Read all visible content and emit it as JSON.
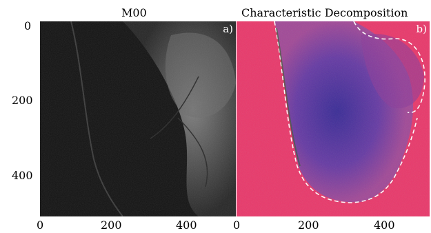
{
  "figure": {
    "panels": [
      {
        "title": "M00",
        "label": "a)",
        "colormap": "grayscale"
      },
      {
        "title": "Characteristic Decomposition",
        "label": "b)",
        "colormap": "false-color",
        "overlay": "dashed-contour",
        "overlay_color": "#ffffff"
      }
    ],
    "y_ticks": [
      "0",
      "200",
      "400"
    ],
    "x_ticks_a": [
      "0",
      "200",
      "400"
    ],
    "x_ticks_b": [
      "0",
      "200",
      "400"
    ]
  }
}
